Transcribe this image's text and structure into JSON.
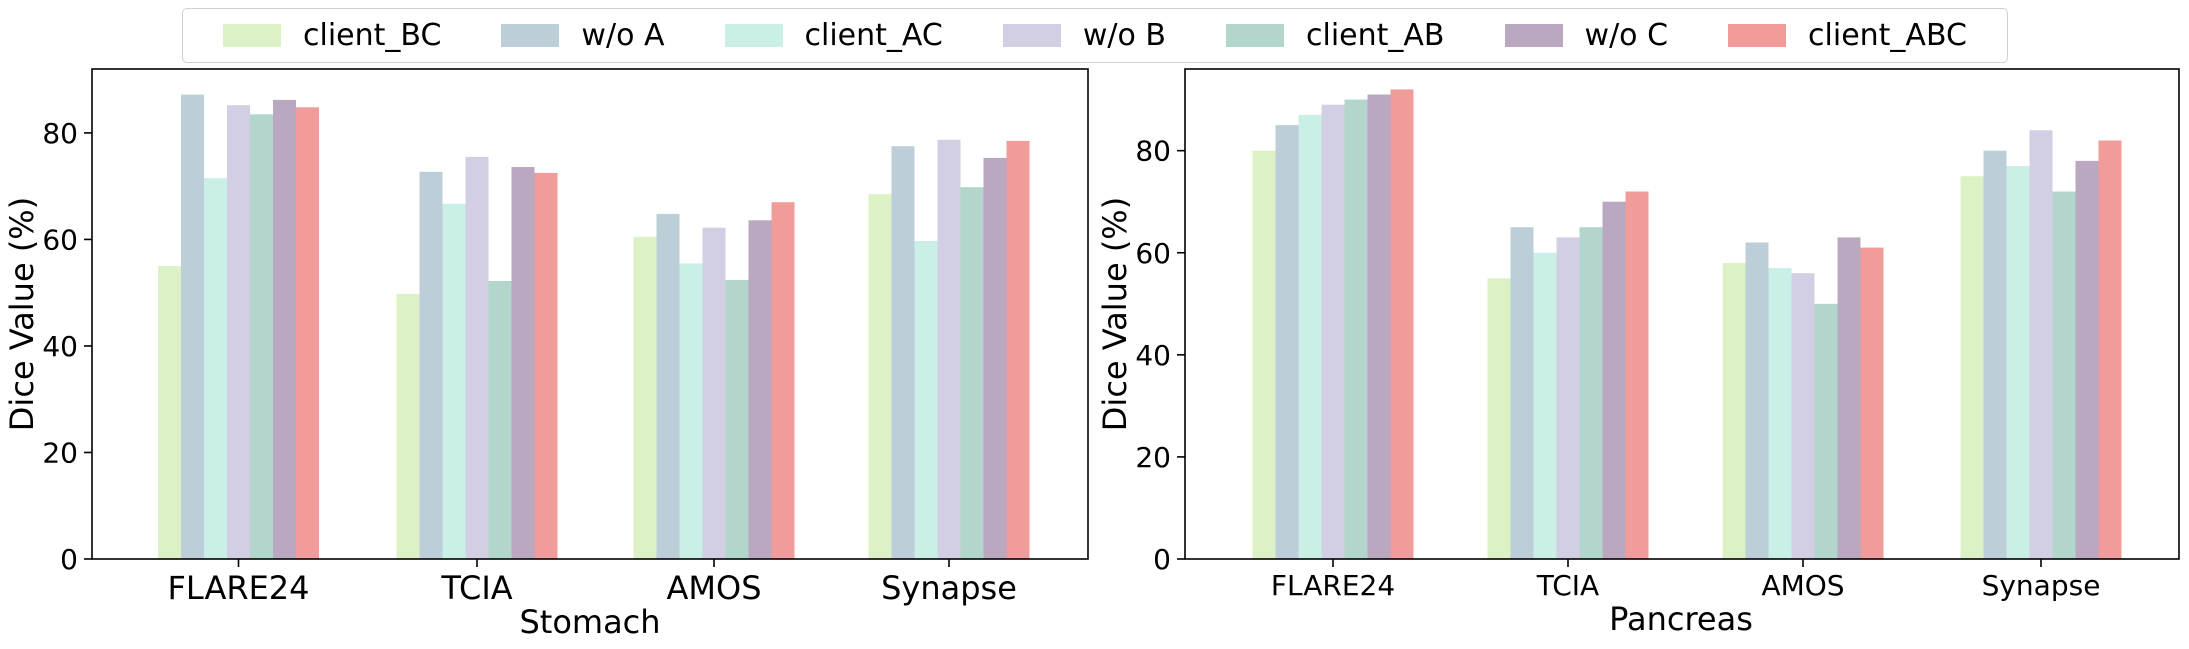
{
  "legend": [
    {
      "label": "client_BC",
      "color": "#dcf2c6"
    },
    {
      "label": "w/o A",
      "color": "#bccfd9"
    },
    {
      "label": "client_AC",
      "color": "#c9efe7"
    },
    {
      "label": "w/o B",
      "color": "#d2cee3"
    },
    {
      "label": "client_AB",
      "color": "#b2d6cc"
    },
    {
      "label": "w/o C",
      "color": "#b9a8bf"
    },
    {
      "label": "client_ABC",
      "color": "#f09c9a"
    }
  ],
  "chart_data": [
    {
      "type": "bar",
      "xlabel": "Stomach",
      "ylabel": "Dice Value (%)",
      "ylim": [
        0,
        92
      ],
      "yticks": [
        0,
        20,
        40,
        60,
        80
      ],
      "categories": [
        "FLARE24",
        "TCIA",
        "AMOS",
        "Synapse"
      ],
      "series": [
        {
          "name": "client_BC",
          "values": [
            55.0,
            49.8,
            60.5,
            68.5
          ]
        },
        {
          "name": "w/o A",
          "values": [
            87.2,
            72.7,
            64.8,
            77.5
          ]
        },
        {
          "name": "client_AC",
          "values": [
            71.5,
            66.7,
            55.5,
            59.7
          ]
        },
        {
          "name": "w/o B",
          "values": [
            85.2,
            75.5,
            62.2,
            78.7
          ]
        },
        {
          "name": "client_AB",
          "values": [
            83.5,
            52.2,
            52.4,
            69.8
          ]
        },
        {
          "name": "w/o C",
          "values": [
            86.2,
            73.6,
            63.6,
            75.3
          ]
        },
        {
          "name": "client_ABC",
          "values": [
            84.8,
            72.5,
            67.0,
            78.5
          ]
        }
      ]
    },
    {
      "type": "bar",
      "xlabel": "Pancreas",
      "ylabel": "Dice Value (%)",
      "ylim": [
        0,
        96
      ],
      "yticks": [
        0,
        20,
        40,
        60,
        80
      ],
      "categories": [
        "FLARE24",
        "TCIA",
        "AMOS",
        "Synapse"
      ],
      "series": [
        {
          "name": "client_BC",
          "values": [
            80,
            55,
            58,
            75
          ]
        },
        {
          "name": "w/o A",
          "values": [
            85,
            65,
            62,
            80
          ]
        },
        {
          "name": "client_AC",
          "values": [
            87,
            60,
            57,
            77
          ]
        },
        {
          "name": "w/o B",
          "values": [
            89,
            63,
            56,
            84
          ]
        },
        {
          "name": "client_AB",
          "values": [
            90,
            65,
            50,
            72
          ]
        },
        {
          "name": "w/o C",
          "values": [
            91,
            70,
            63,
            78
          ]
        },
        {
          "name": "client_ABC",
          "values": [
            92,
            72,
            61,
            82
          ]
        }
      ]
    }
  ]
}
